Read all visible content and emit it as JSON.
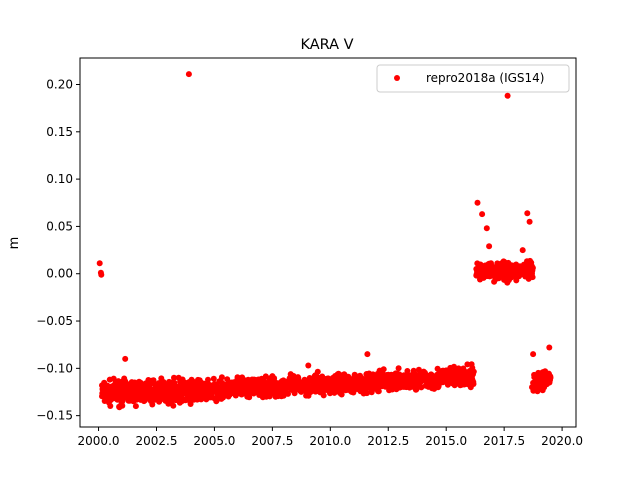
{
  "chart_data": {
    "type": "scatter",
    "title": "KARA V",
    "xlabel": "",
    "ylabel": "m",
    "xlim": [
      1999.2,
      2020.6
    ],
    "ylim": [
      -0.162,
      0.228
    ],
    "xticks": [
      2000.0,
      2002.5,
      2005.0,
      2007.5,
      2010.0,
      2012.5,
      2015.0,
      2017.5,
      2020.0
    ],
    "xtick_labels": [
      "2000.0",
      "2002.5",
      "2005.0",
      "2007.5",
      "2010.0",
      "2012.5",
      "2015.0",
      "2017.5",
      "2020.0"
    ],
    "yticks": [
      -0.15,
      -0.1,
      -0.05,
      0.0,
      0.05,
      0.1,
      0.15,
      0.2
    ],
    "ytick_labels": [
      "−0.15",
      "−0.10",
      "−0.05",
      "0.00",
      "0.05",
      "0.10",
      "0.15",
      "0.20"
    ],
    "grid": false,
    "legend_position": "top-right",
    "series": [
      {
        "name": "repro2018a (IGS14)",
        "color": "#ff0000",
        "marker": "circle",
        "x": [
          2000.05,
          2000.1,
          2000.12,
          2000.15,
          2000.2,
          2000.3,
          2000.4,
          2000.5,
          2000.6,
          2000.7,
          2000.8,
          2000.9,
          2001.0,
          2001.1,
          2001.2,
          2001.3,
          2001.5,
          2001.7,
          2001.9,
          2002.1,
          2002.3,
          2002.5,
          2002.7,
          2002.9,
          2003.1,
          2003.3,
          2003.5,
          2003.7,
          2003.9,
          2003.95,
          2004.1,
          2004.3,
          2004.5,
          2004.7,
          2004.9,
          2005.1,
          2005.3,
          2005.5,
          2005.7,
          2005.9,
          2006.1,
          2006.3,
          2006.5,
          2006.7,
          2006.9,
          2007.1,
          2007.3,
          2007.5,
          2007.7,
          2007.9,
          2008.1,
          2008.3,
          2008.5,
          2008.7,
          2008.9,
          2009.0,
          2009.1,
          2009.3,
          2009.5,
          2009.7,
          2009.9,
          2010.1,
          2010.3,
          2010.5,
          2010.7,
          2010.9,
          2011.1,
          2011.3,
          2011.5,
          2011.55,
          2011.7,
          2011.9,
          2012.1,
          2012.3,
          2012.5,
          2012.7,
          2012.9,
          2013.1,
          2013.3,
          2013.5,
          2013.7,
          2013.9,
          2014.1,
          2014.3,
          2014.5,
          2014.7,
          2014.9,
          2015.1,
          2015.3,
          2015.5,
          2015.7,
          2015.9,
          2016.1,
          2016.3,
          2016.4,
          2016.5,
          2016.6,
          2016.7,
          2016.8,
          2016.9,
          2017.0,
          2017.1,
          2017.2,
          2017.3,
          2017.4,
          2017.5,
          2017.6,
          2017.7,
          2017.8,
          2017.9,
          2018.0,
          2018.1,
          2018.2,
          2018.3,
          2018.4,
          2018.5,
          2018.55,
          2018.65,
          2018.7,
          2018.8,
          2018.9,
          2019.0,
          2019.1,
          2019.2,
          2019.3,
          2019.4,
          2019.45,
          2019.5,
          2016.35,
          2016.55,
          2016.75,
          2016.85,
          2017.65,
          2018.3,
          2018.5,
          2018.6,
          2018.7,
          2001.15,
          2003.9,
          2009.05,
          2011.6,
          2018.75,
          2019.45
        ],
        "y": [
          0.011,
          0.001,
          -0.001,
          -0.118,
          -0.125,
          -0.13,
          -0.12,
          -0.128,
          -0.132,
          -0.122,
          -0.125,
          -0.13,
          -0.118,
          -0.127,
          -0.124,
          -0.129,
          -0.121,
          -0.126,
          -0.13,
          -0.123,
          -0.127,
          -0.125,
          -0.129,
          -0.124,
          -0.128,
          -0.122,
          -0.13,
          -0.125,
          -0.132,
          -0.135,
          -0.127,
          -0.124,
          -0.129,
          -0.12,
          -0.124,
          -0.118,
          -0.123,
          -0.12,
          -0.126,
          -0.119,
          -0.124,
          -0.118,
          -0.121,
          -0.125,
          -0.117,
          -0.122,
          -0.119,
          -0.123,
          -0.116,
          -0.121,
          -0.118,
          -0.122,
          -0.115,
          -0.12,
          -0.117,
          -0.113,
          -0.12,
          -0.116,
          -0.119,
          -0.113,
          -0.118,
          -0.114,
          -0.117,
          -0.11,
          -0.116,
          -0.112,
          -0.115,
          -0.109,
          -0.113,
          -0.117,
          -0.111,
          -0.116,
          -0.112,
          -0.114,
          -0.11,
          -0.115,
          -0.111,
          -0.113,
          -0.109,
          -0.114,
          -0.11,
          -0.112,
          -0.108,
          -0.113,
          -0.109,
          -0.111,
          -0.107,
          -0.112,
          -0.108,
          -0.111,
          -0.107,
          -0.11,
          -0.108,
          0.005,
          0.008,
          -0.002,
          0.006,
          0.003,
          -0.001,
          0.007,
          0.004,
          0.002,
          0.006,
          -0.001,
          0.005,
          0.003,
          0.008,
          0.002,
          0.006,
          0.004,
          0.001,
          0.007,
          0.003,
          0.005,
          0.002,
          0.006,
          0.004,
          0.001,
          -0.12,
          -0.115,
          -0.122,
          -0.117,
          -0.113,
          -0.118,
          -0.112,
          -0.108,
          -0.114,
          -0.11,
          0.075,
          0.063,
          0.048,
          0.029,
          0.188,
          0.025,
          0.064,
          0.055,
          0.0,
          -0.09,
          0.211,
          -0.097,
          -0.085,
          -0.085,
          -0.078
        ]
      }
    ]
  }
}
